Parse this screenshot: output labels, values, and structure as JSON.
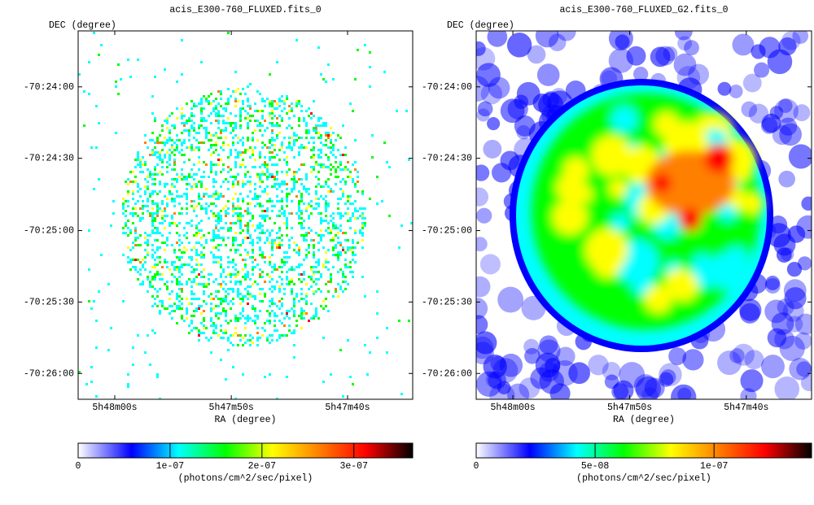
{
  "chart_data": [
    {
      "type": "image",
      "title": "acis_E300-760_FLUXED.fits_0",
      "xlabel": "RA (degree)",
      "ylabel": "DEC (degree)",
      "xlim": [
        87.0131,
        86.8934
      ],
      "ylim": [
        -70.4363,
        -70.3935
      ],
      "xticks": [
        {
          "value": 87.0,
          "label": "5h48m00s"
        },
        {
          "value": 86.9583,
          "label": "5h47m50s"
        },
        {
          "value": 86.9167,
          "label": "5h47m40s"
        }
      ],
      "yticks": [
        {
          "value": -70.4,
          "label": "-70:24:00"
        },
        {
          "value": -70.4083,
          "label": "-70:24:30"
        },
        {
          "value": -70.4167,
          "label": "-70:25:00"
        },
        {
          "value": -70.425,
          "label": "-70:25:30"
        },
        {
          "value": -70.4333,
          "label": "-70:26:00"
        }
      ],
      "colormap": [
        "#ffffff",
        "#0000ff",
        "#00ffff",
        "#00ff00",
        "#ffff00",
        "#ff8000",
        "#ff0000",
        "#000000"
      ],
      "colorbar": {
        "label": "(photons/cm^2/sec/pixel)",
        "lim": [
          0,
          3.64e-07
        ],
        "ticks": [
          0,
          {
            "value": 1e-07,
            "label": "1e-07"
          },
          {
            "value": 2e-07,
            "label": "2e-07"
          },
          {
            "value": 3e-07,
            "label": "3e-07"
          }
        ]
      }
    },
    {
      "type": "image",
      "title": "acis_E300-760_FLUXED_G2.fits_0",
      "xlabel": "RA (degree)",
      "ylabel": "DEC (degree)",
      "xlim": [
        87.0131,
        86.8934
      ],
      "ylim": [
        -70.4363,
        -70.3935
      ],
      "xticks": [
        {
          "value": 87.0,
          "label": "5h48m00s"
        },
        {
          "value": 86.9583,
          "label": "5h47m50s"
        },
        {
          "value": 86.9167,
          "label": "5h47m40s"
        }
      ],
      "yticks": [
        {
          "value": -70.4,
          "label": "-70:24:00"
        },
        {
          "value": -70.4083,
          "label": "-70:24:30"
        },
        {
          "value": -70.4167,
          "label": "-70:25:00"
        },
        {
          "value": -70.425,
          "label": "-70:25:30"
        },
        {
          "value": -70.4333,
          "label": "-70:26:00"
        }
      ],
      "colormap": [
        "#ffffff",
        "#0000ff",
        "#00ffff",
        "#00ff00",
        "#ffff00",
        "#ff8000",
        "#ff0000",
        "#000000"
      ],
      "colorbar": {
        "label": "(photons/cm^2/sec/pixel)",
        "lim": [
          0,
          1.41e-07
        ],
        "ticks": [
          0,
          {
            "value": 5e-08,
            "label": "5e-08"
          },
          {
            "value": 1e-07,
            "label": "1e-07"
          }
        ]
      }
    }
  ]
}
